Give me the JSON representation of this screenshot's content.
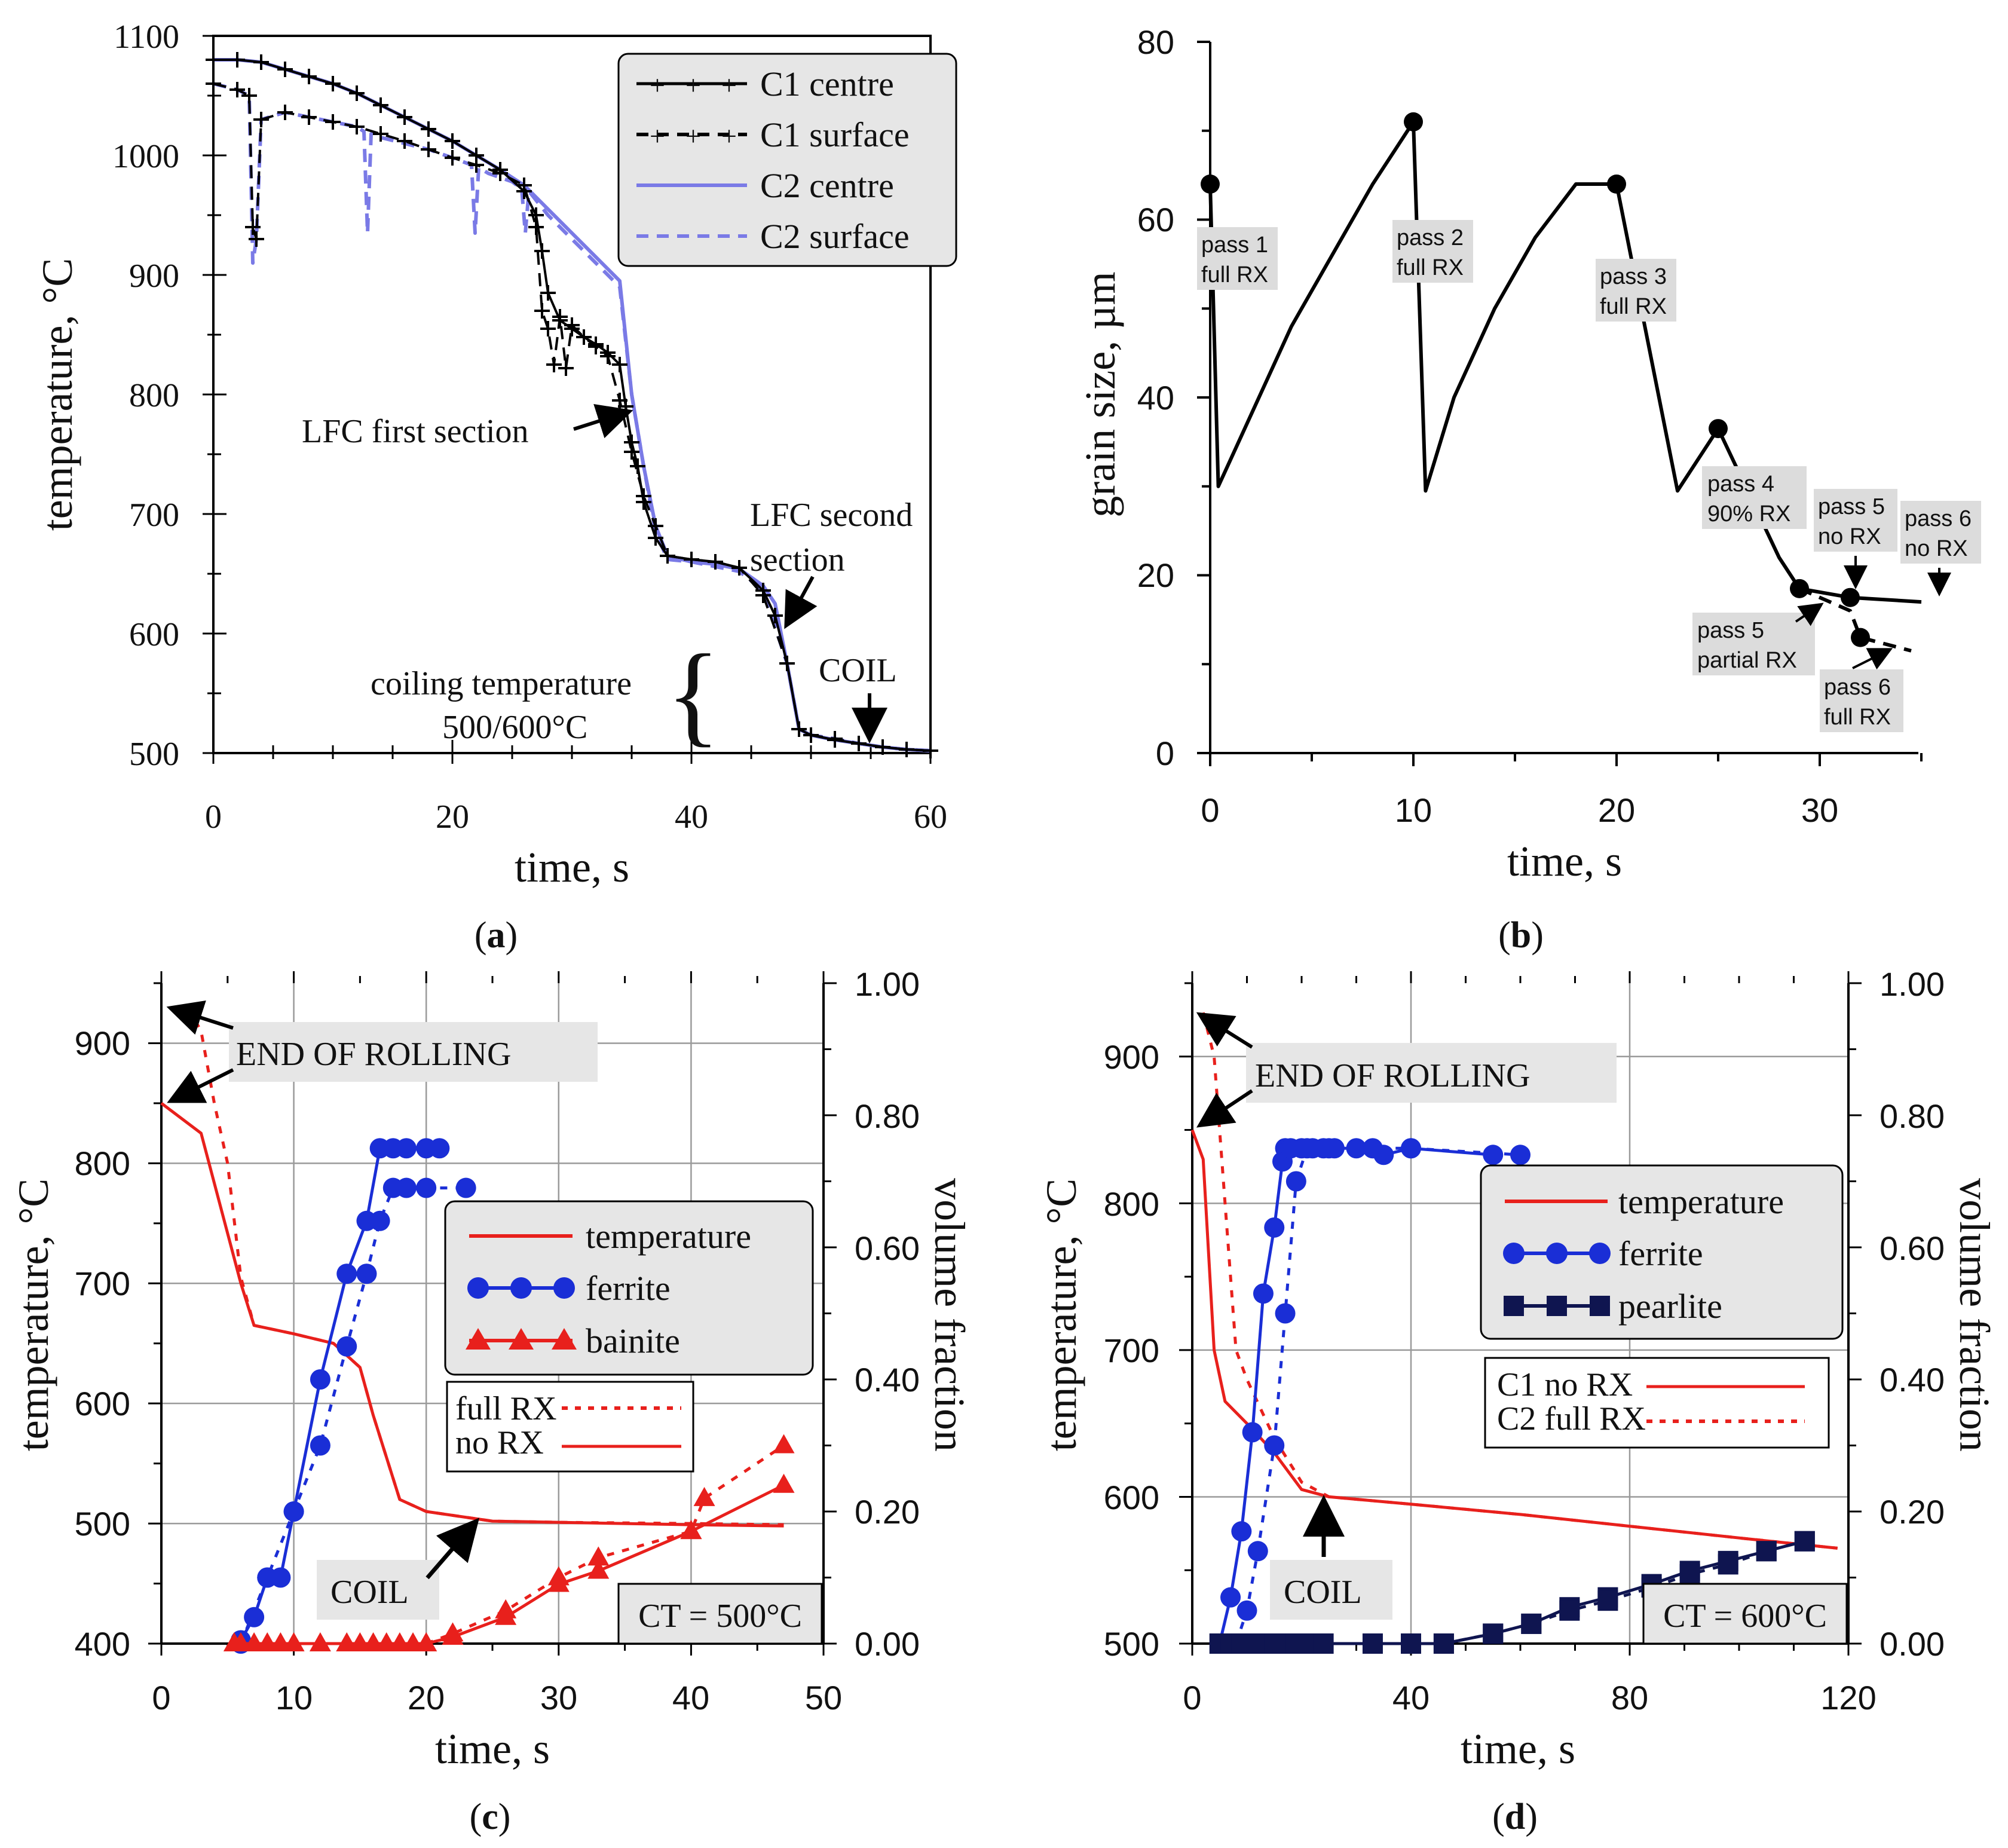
{
  "chart_data": [
    {
      "type": "line",
      "panel_label": "a",
      "xlabel": "time, s",
      "ylabel": "temperature, °C",
      "xlim": [
        0,
        60
      ],
      "ylim": [
        500,
        1100
      ],
      "xticks": [
        "0",
        "20",
        "40",
        "60"
      ],
      "yticks": [
        "500",
        "600",
        "700",
        "800",
        "900",
        "1000",
        "1100"
      ],
      "series": [
        {
          "name": "C1 centre",
          "color": "#000000",
          "dash": "solid",
          "marker": "plus",
          "x": [
            0,
            2,
            4,
            6,
            8,
            10,
            12,
            14,
            16,
            18,
            20,
            22,
            24,
            26,
            27,
            27.5,
            28,
            29,
            30,
            31,
            32,
            33,
            34,
            34.5,
            35,
            35.5,
            36,
            37,
            38,
            40,
            42,
            44,
            46,
            47,
            48,
            49,
            50,
            52,
            54,
            56,
            58,
            60
          ],
          "y": [
            1080,
            1080,
            1078,
            1072,
            1066,
            1060,
            1052,
            1042,
            1032,
            1022,
            1012,
            1000,
            988,
            970,
            950,
            920,
            885,
            862,
            855,
            848,
            842,
            835,
            825,
            790,
            760,
            740,
            710,
            680,
            665,
            662,
            660,
            655,
            636,
            615,
            575,
            520,
            515,
            511,
            508,
            505,
            503,
            502
          ]
        },
        {
          "name": "C1 surface",
          "color": "#000000",
          "dash": "dashed",
          "marker": "plus",
          "x": [
            0,
            2,
            3,
            3.3,
            3.6,
            4,
            6,
            8,
            10,
            12,
            14,
            16,
            18,
            20,
            22,
            24,
            26,
            27,
            27.5,
            28,
            28.5,
            29,
            29.5,
            30,
            31,
            32,
            33,
            34,
            35,
            36,
            37,
            38,
            40,
            42,
            44,
            46,
            48,
            49,
            50,
            52,
            54,
            56,
            58,
            60
          ],
          "y": [
            1060,
            1055,
            1050,
            940,
            930,
            1030,
            1036,
            1032,
            1028,
            1024,
            1018,
            1012,
            1005,
            998,
            992,
            985,
            975,
            940,
            870,
            855,
            825,
            865,
            822,
            858,
            848,
            840,
            832,
            795,
            752,
            715,
            690,
            665,
            662,
            660,
            655,
            632,
            575,
            520,
            515,
            512,
            508,
            505,
            503,
            502
          ]
        },
        {
          "name": "C2 centre",
          "color": "#7a7ae6",
          "dash": "solid",
          "marker": "none",
          "x": [
            0,
            2,
            4,
            6,
            8,
            10,
            12,
            14,
            16,
            18,
            20,
            22,
            24,
            26,
            28,
            30,
            32,
            34,
            35,
            36,
            37,
            38,
            40,
            42,
            44,
            46,
            47,
            48,
            49,
            50,
            52,
            54,
            56,
            58,
            60
          ],
          "y": [
            1080,
            1080,
            1078,
            1072,
            1066,
            1060,
            1052,
            1042,
            1032,
            1022,
            1012,
            1000,
            988,
            975,
            955,
            935,
            915,
            895,
            800,
            740,
            690,
            665,
            660,
            658,
            654,
            640,
            625,
            575,
            520,
            515,
            511,
            508,
            505,
            503,
            502
          ]
        },
        {
          "name": "C2 surface",
          "color": "#7a7ae6",
          "dash": "dashed",
          "marker": "none",
          "x": [
            0,
            2,
            3,
            3.3,
            3.6,
            4,
            6,
            8,
            10,
            12,
            12.6,
            12.9,
            13.2,
            14,
            16,
            18,
            20,
            21.6,
            21.9,
            22.2,
            23,
            25,
            25.8,
            26.1,
            26.4,
            28,
            30,
            32,
            34,
            35,
            36,
            37,
            38,
            40,
            42,
            44,
            46,
            48,
            49,
            50,
            52,
            54,
            56,
            58,
            60
          ],
          "y": [
            1060,
            1055,
            1050,
            910,
            930,
            1030,
            1036,
            1032,
            1028,
            1024,
            1020,
            935,
            1018,
            1015,
            1010,
            1005,
            998,
            992,
            935,
            990,
            985,
            978,
            972,
            935,
            970,
            950,
            930,
            910,
            890,
            800,
            740,
            685,
            662,
            660,
            656,
            652,
            636,
            575,
            520,
            515,
            512,
            508,
            505,
            503,
            502
          ]
        }
      ],
      "annotations": [
        "LFC first section",
        "LFC second section",
        "coiling temperature",
        "500/600°C",
        "COIL"
      ]
    },
    {
      "type": "line",
      "panel_label": "b",
      "xlabel": "time, s",
      "ylabel": "grain size, µm",
      "xlim": [
        0,
        35
      ],
      "ylim": [
        0,
        80
      ],
      "xticks": [
        "0",
        "10",
        "20",
        "30"
      ],
      "yticks": [
        "0",
        "20",
        "40",
        "60",
        "80"
      ],
      "series": [
        {
          "name": "solid path",
          "color": "#000000",
          "dash": "solid",
          "x": [
            0,
            0.4,
            2,
            4,
            6,
            8,
            10,
            10.6,
            12,
            14,
            16,
            18,
            20,
            23,
            25,
            28,
            29,
            31.5,
            35
          ],
          "y": [
            64,
            30,
            38,
            48,
            56,
            64,
            71,
            29.5,
            40,
            50,
            58,
            64,
            64,
            29.5,
            36.5,
            22,
            18.5,
            17.5,
            17
          ]
        },
        {
          "name": "dashed path",
          "color": "#000000",
          "dash": "dashed",
          "x": [
            29,
            31.5,
            32,
            34.5
          ],
          "y": [
            18.5,
            16,
            13,
            11.5
          ]
        }
      ],
      "points": [
        {
          "x": 0,
          "y": 64
        },
        {
          "x": 10,
          "y": 71
        },
        {
          "x": 20,
          "y": 64
        },
        {
          "x": 25,
          "y": 36.5
        },
        {
          "x": 29,
          "y": 18.5
        },
        {
          "x": 31.5,
          "y": 17.5
        },
        {
          "x": 32,
          "y": 13
        }
      ],
      "annotations": [
        {
          "l1": "pass 1",
          "l2": "full RX"
        },
        {
          "l1": "pass 2",
          "l2": "full RX"
        },
        {
          "l1": "pass 3",
          "l2": "full RX"
        },
        {
          "l1": "pass 4",
          "l2": "90% RX"
        },
        {
          "l1": "pass 5",
          "l2": "no RX"
        },
        {
          "l1": "pass 6",
          "l2": "no RX"
        },
        {
          "l1": "pass 5",
          "l2": "partial RX"
        },
        {
          "l1": "pass 6",
          "l2": "full RX"
        }
      ]
    },
    {
      "type": "line",
      "panel_label": "c",
      "xlabel": "time, s",
      "ylabel": "temperature, °C",
      "ylabel_right": "volume fraction",
      "xlim": [
        0,
        50
      ],
      "ylim": [
        400,
        950
      ],
      "ylim_right": [
        0,
        1
      ],
      "xticks": [
        "0",
        "10",
        "20",
        "30",
        "40",
        "50"
      ],
      "yticks": [
        "400",
        "500",
        "600",
        "700",
        "800",
        "900"
      ],
      "yticks_right": [
        "0.00",
        "0.20",
        "0.40",
        "0.60",
        "0.80",
        "1.00"
      ],
      "series": [
        {
          "name": "temperature no RX",
          "axis": "left",
          "color": "#e8201c",
          "dash": "solid",
          "x": [
            0,
            3,
            6,
            7,
            10,
            13,
            15,
            16,
            18,
            20,
            25,
            30,
            40,
            47
          ],
          "y": [
            850,
            825,
            700,
            665,
            658,
            650,
            630,
            590,
            520,
            510,
            502,
            501,
            499,
            498
          ]
        },
        {
          "name": "temperature full RX",
          "axis": "left",
          "color": "#e8201c",
          "dash": "dotted",
          "x": [
            2,
            3,
            4,
            5,
            6,
            7,
            10,
            13,
            15,
            16,
            18,
            20,
            25,
            30,
            40,
            47
          ],
          "y": [
            930,
            910,
            850,
            800,
            705,
            665,
            658,
            650,
            630,
            590,
            520,
            510,
            502,
            501,
            500,
            499
          ]
        },
        {
          "name": "ferrite no RX",
          "axis": "right",
          "color": "#1a2ed6",
          "dash": "solid",
          "marker": "circle",
          "x": [
            6,
            7,
            8,
            9,
            10,
            12,
            14,
            15.5,
            16.5,
            17.5,
            18.5,
            20,
            21
          ],
          "y": [
            0.005,
            0.04,
            0.1,
            0.1,
            0.2,
            0.4,
            0.56,
            0.64,
            0.75,
            0.75,
            0.75,
            0.75,
            0.75
          ]
        },
        {
          "name": "ferrite full RX",
          "axis": "right",
          "color": "#1a2ed6",
          "dash": "dotted",
          "marker": "circle",
          "x": [
            6,
            8,
            10,
            12,
            14,
            15.5,
            16.5,
            17.5,
            18.5,
            20,
            23
          ],
          "y": [
            0,
            0.1,
            0.2,
            0.3,
            0.45,
            0.56,
            0.64,
            0.69,
            0.69,
            0.69,
            0.69
          ]
        },
        {
          "name": "bainite no RX",
          "axis": "right",
          "color": "#e8201c",
          "dash": "solid",
          "marker": "triangle",
          "x": [
            5.5,
            6,
            7,
            8,
            9,
            10,
            12,
            14,
            15,
            16,
            17,
            18,
            19,
            20,
            22,
            26,
            30,
            33,
            40,
            47
          ],
          "y": [
            0,
            0,
            0,
            0,
            0,
            0,
            0,
            0,
            0,
            0,
            0,
            0,
            0,
            0,
            0.01,
            0.04,
            0.09,
            0.11,
            0.17,
            0.24
          ]
        },
        {
          "name": "bainite full RX",
          "axis": "right",
          "color": "#e8201c",
          "dash": "dotted",
          "marker": "triangle",
          "x": [
            20,
            22,
            26,
            30,
            33,
            40,
            41,
            47
          ],
          "y": [
            0,
            0.015,
            0.05,
            0.1,
            0.13,
            0.17,
            0.22,
            0.3
          ]
        }
      ],
      "legend": [
        "temperature",
        "ferrite",
        "bainite"
      ],
      "legend2": [
        "full RX",
        "no RX"
      ],
      "annotations": [
        "END OF ROLLING",
        "COIL",
        "CT = 500°C"
      ]
    },
    {
      "type": "line",
      "panel_label": "d",
      "xlabel": "time, s",
      "ylabel": "temperature, °C",
      "ylabel_right": "volume fraction",
      "xlim": [
        0,
        120
      ],
      "ylim": [
        500,
        950
      ],
      "ylim_right": [
        0,
        1
      ],
      "xticks": [
        "0",
        "40",
        "80",
        "120"
      ],
      "yticks": [
        "500",
        "600",
        "700",
        "800",
        "900"
      ],
      "yticks_right": [
        "0.00",
        "0.20",
        "0.40",
        "0.60",
        "0.80",
        "1.00"
      ],
      "series": [
        {
          "name": "temperature C1 no RX",
          "axis": "left",
          "color": "#e8201c",
          "dash": "solid",
          "x": [
            0,
            2,
            4,
            6,
            10,
            15,
            20,
            25,
            40,
            60,
            80,
            100,
            118
          ],
          "y": [
            850,
            830,
            700,
            665,
            650,
            630,
            605,
            600,
            595,
            588,
            580,
            572,
            565
          ]
        },
        {
          "name": "temperature C2 full RX",
          "axis": "left",
          "color": "#e8201c",
          "dash": "dotted",
          "x": [
            2,
            4,
            6,
            8,
            10,
            15,
            20,
            25,
            40,
            60,
            80,
            100,
            118
          ],
          "y": [
            930,
            900,
            800,
            700,
            680,
            640,
            610,
            600,
            595,
            588,
            580,
            572,
            565
          ]
        },
        {
          "name": "ferrite no RX",
          "axis": "right",
          "color": "#1a2ed6",
          "dash": "solid",
          "marker": "circle",
          "x": [
            5,
            7,
            9,
            11,
            13,
            15,
            16.5,
            17,
            18,
            20,
            22,
            24,
            26,
            33,
            35,
            40,
            55
          ],
          "y": [
            0,
            0.07,
            0.17,
            0.32,
            0.53,
            0.63,
            0.73,
            0.75,
            0.75,
            0.75,
            0.75,
            0.75,
            0.75,
            0.75,
            0.74,
            0.75,
            0.74
          ]
        },
        {
          "name": "ferrite full RX",
          "axis": "right",
          "color": "#1a2ed6",
          "dash": "dotted",
          "marker": "circle",
          "x": [
            8,
            10,
            12,
            15,
            17,
            19,
            21,
            25,
            30,
            40,
            60
          ],
          "y": [
            0,
            0.05,
            0.14,
            0.3,
            0.5,
            0.7,
            0.75,
            0.75,
            0.75,
            0.75,
            0.74
          ]
        },
        {
          "name": "pearlite no RX",
          "axis": "right",
          "color": "#0f1550",
          "dash": "solid",
          "marker": "square",
          "x": [
            5,
            7,
            9,
            11,
            13,
            15,
            17,
            19,
            21,
            24,
            33,
            40,
            46,
            55,
            62,
            69,
            76,
            84,
            91,
            98,
            105,
            112
          ],
          "y": [
            0,
            0,
            0,
            0,
            0,
            0,
            0,
            0,
            0,
            0,
            0,
            0,
            0,
            0.015,
            0.03,
            0.055,
            0.07,
            0.09,
            0.11,
            0.125,
            0.14,
            0.155
          ]
        },
        {
          "name": "pearlite full RX",
          "axis": "right",
          "color": "#0f1550",
          "dash": "dotted",
          "marker": "square",
          "x": [
            46,
            55,
            62,
            69,
            76,
            84,
            91,
            98,
            105,
            112
          ],
          "y": [
            0,
            0.015,
            0.03,
            0.05,
            0.065,
            0.085,
            0.105,
            0.12,
            0.14,
            0.155
          ]
        }
      ],
      "legend": [
        "temperature",
        "ferrite",
        "pearlite"
      ],
      "legend2": [
        "C1 no RX",
        "C2 full RX"
      ],
      "annotations": [
        "END OF ROLLING",
        "COIL",
        "CT = 600°C"
      ]
    }
  ]
}
